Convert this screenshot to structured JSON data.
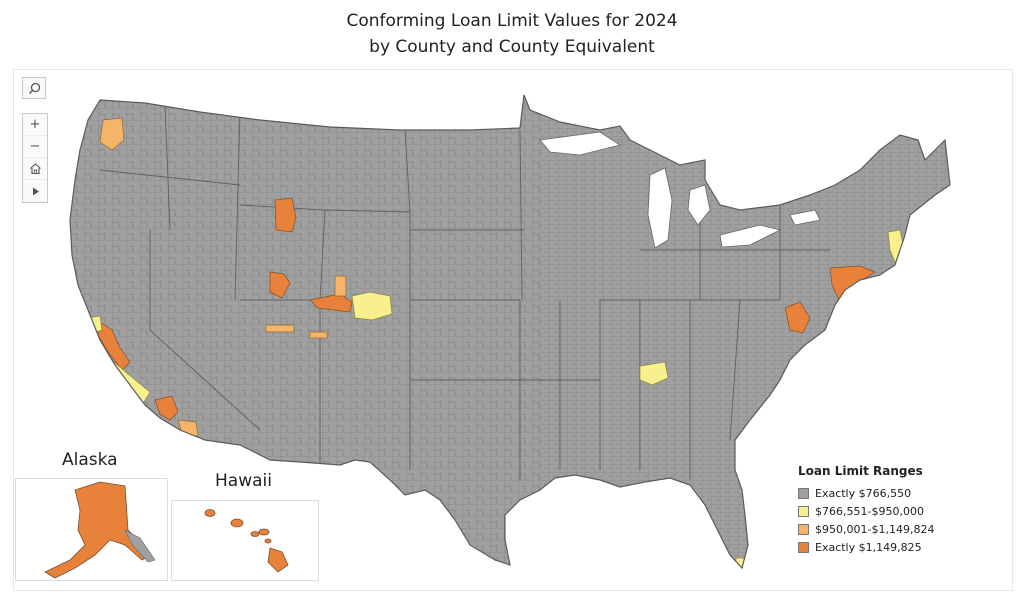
{
  "title": {
    "line1": "Conforming Loan Limit Values for 2024",
    "line2": "by County and County Equivalent"
  },
  "toolbar": {
    "search_icon": "search-icon",
    "zoom_in": "+",
    "zoom_out": "−",
    "home_icon": "home-icon",
    "pan_icon": "play-icon"
  },
  "insets": {
    "alaska_label": "Alaska",
    "hawaii_label": "Hawaii"
  },
  "legend": {
    "title": "Loan Limit Ranges",
    "items": [
      {
        "label": "Exactly $766,550",
        "color": "#a0a0a0"
      },
      {
        "label": "$766,551-$950,000",
        "color": "#f8f08c"
      },
      {
        "label": "$950,001-$1,149,824",
        "color": "#f5b46a"
      },
      {
        "label": "Exactly $1,149,825",
        "color": "#e8823a"
      }
    ]
  },
  "colors": {
    "base": "#a0a0a0",
    "tier2": "#f8f08c",
    "tier3": "#f5b46a",
    "tier4": "#e8823a",
    "border": "#6e6e6e"
  }
}
